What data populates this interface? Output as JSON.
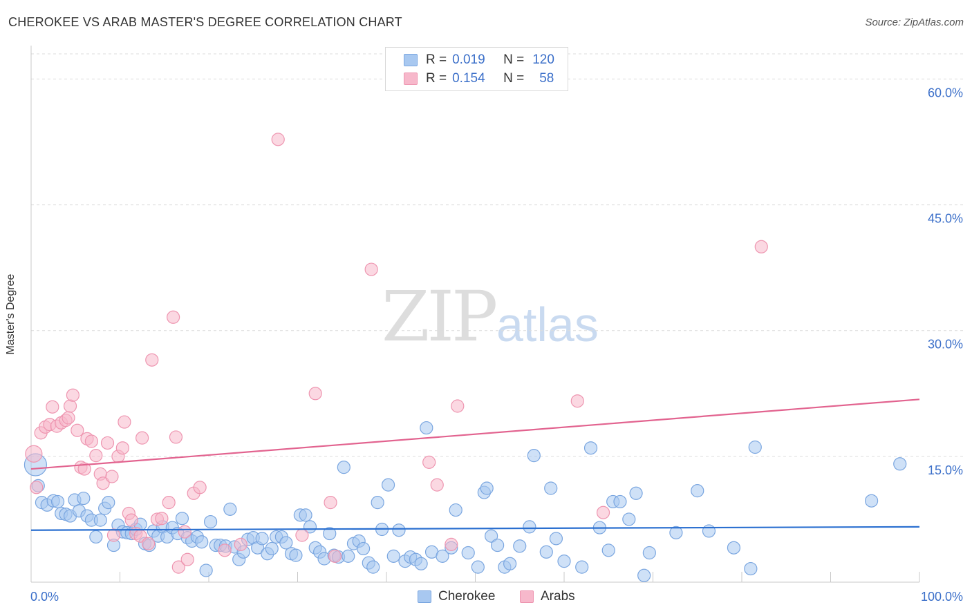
{
  "header": {
    "title": "CHEROKEE VS ARAB MASTER'S DEGREE CORRELATION CHART",
    "source": "Source: ZipAtlas.com"
  },
  "watermark": {
    "zip": "ZIP",
    "atlas": "atlas"
  },
  "legend": {
    "rows": [
      {
        "r_label": "R =",
        "r_value": "0.019",
        "n_label": "N =",
        "n_value": "120",
        "color": "#a8c8f0"
      },
      {
        "r_label": "R =",
        "r_value": "0.154",
        "n_label": "N =",
        "n_value": "58",
        "color": "#f7b8cb"
      }
    ]
  },
  "colors": {
    "cherokee_fill": "#a8c8f0",
    "cherokee_stroke": "#7aa6e0",
    "cherokee_line": "#2a6fd0",
    "arabs_fill": "#f7b8cb",
    "arabs_stroke": "#ee95b0",
    "arabs_line": "#e2638f",
    "axis_label": "#3b6fc9",
    "grid": "#dcdcdc"
  },
  "chart_data": {
    "type": "scatter",
    "title": "CHEROKEE VS ARAB MASTER'S DEGREE CORRELATION CHART",
    "xlabel": "",
    "ylabel": "Master's Degree",
    "xlim": [
      0,
      100
    ],
    "ylim": [
      0,
      63
    ],
    "x_tick_labels": [
      "0.0%",
      "100.0%"
    ],
    "y_ticks": [
      15,
      30,
      45,
      60
    ],
    "y_tick_labels": [
      "15.0%",
      "30.0%",
      "45.0%",
      "60.0%"
    ],
    "grid": "horizontal dashed",
    "legend_position": "top-center and bottom",
    "series": [
      {
        "name": "Cherokee",
        "trend": {
          "x": [
            0,
            100
          ],
          "y": [
            6.2,
            6.6
          ]
        },
        "points": [
          [
            0.5,
            14.0
          ],
          [
            0.8,
            11.5
          ],
          [
            1.2,
            9.5
          ],
          [
            1.8,
            9.2
          ],
          [
            2.5,
            9.7
          ],
          [
            3.0,
            9.6
          ],
          [
            3.4,
            8.2
          ],
          [
            3.9,
            8.1
          ],
          [
            4.4,
            7.9
          ],
          [
            4.9,
            9.8
          ],
          [
            5.4,
            8.5
          ],
          [
            5.9,
            10.0
          ],
          [
            6.3,
            7.9
          ],
          [
            6.8,
            7.4
          ],
          [
            7.3,
            5.4
          ],
          [
            7.8,
            7.4
          ],
          [
            8.3,
            8.8
          ],
          [
            8.7,
            9.5
          ],
          [
            9.3,
            4.4
          ],
          [
            9.8,
            6.8
          ],
          [
            10.3,
            6.0
          ],
          [
            10.8,
            5.9
          ],
          [
            11.3,
            5.8
          ],
          [
            11.8,
            6.3
          ],
          [
            12.3,
            6.9
          ],
          [
            12.8,
            4.6
          ],
          [
            13.3,
            4.4
          ],
          [
            13.8,
            6.1
          ],
          [
            14.3,
            5.5
          ],
          [
            14.8,
            6.6
          ],
          [
            15.3,
            5.4
          ],
          [
            15.9,
            6.5
          ],
          [
            16.5,
            5.8
          ],
          [
            17.0,
            7.6
          ],
          [
            17.6,
            5.3
          ],
          [
            18.1,
            4.9
          ],
          [
            18.7,
            5.4
          ],
          [
            19.2,
            4.8
          ],
          [
            19.7,
            1.4
          ],
          [
            20.2,
            7.2
          ],
          [
            20.8,
            4.4
          ],
          [
            21.3,
            4.4
          ],
          [
            21.9,
            4.3
          ],
          [
            22.4,
            8.7
          ],
          [
            22.9,
            4.2
          ],
          [
            23.4,
            2.7
          ],
          [
            23.9,
            3.6
          ],
          [
            24.4,
            5.1
          ],
          [
            25.0,
            5.3
          ],
          [
            25.5,
            4.1
          ],
          [
            26.0,
            5.2
          ],
          [
            26.6,
            3.4
          ],
          [
            27.1,
            4.0
          ],
          [
            27.6,
            5.4
          ],
          [
            28.2,
            5.4
          ],
          [
            28.7,
            4.7
          ],
          [
            29.3,
            3.4
          ],
          [
            29.8,
            3.2
          ],
          [
            30.3,
            8.0
          ],
          [
            30.9,
            8.0
          ],
          [
            31.4,
            6.6
          ],
          [
            32.0,
            4.1
          ],
          [
            32.5,
            3.6
          ],
          [
            33.0,
            2.8
          ],
          [
            33.6,
            5.8
          ],
          [
            34.1,
            3.2
          ],
          [
            34.6,
            3.0
          ],
          [
            35.2,
            13.7
          ],
          [
            35.7,
            3.1
          ],
          [
            36.3,
            4.6
          ],
          [
            36.9,
            4.9
          ],
          [
            37.4,
            4.0
          ],
          [
            38.0,
            2.3
          ],
          [
            38.5,
            1.8
          ],
          [
            39.0,
            9.5
          ],
          [
            39.5,
            6.3
          ],
          [
            40.2,
            11.6
          ],
          [
            40.8,
            3.1
          ],
          [
            41.4,
            6.2
          ],
          [
            42.1,
            2.5
          ],
          [
            42.7,
            3.0
          ],
          [
            43.3,
            2.7
          ],
          [
            43.9,
            2.2
          ],
          [
            44.5,
            18.4
          ],
          [
            45.1,
            3.6
          ],
          [
            46.3,
            3.1
          ],
          [
            47.3,
            4.1
          ],
          [
            47.8,
            8.6
          ],
          [
            49.2,
            3.5
          ],
          [
            50.3,
            1.8
          ],
          [
            51.0,
            10.7
          ],
          [
            51.3,
            11.2
          ],
          [
            51.8,
            5.5
          ],
          [
            52.5,
            4.4
          ],
          [
            53.3,
            1.8
          ],
          [
            53.9,
            2.2
          ],
          [
            55.0,
            4.3
          ],
          [
            56.1,
            6.6
          ],
          [
            56.6,
            15.1
          ],
          [
            58.0,
            3.6
          ],
          [
            58.5,
            11.2
          ],
          [
            59.1,
            5.2
          ],
          [
            60.0,
            2.5
          ],
          [
            62.0,
            1.8
          ],
          [
            63.0,
            16.0
          ],
          [
            64.0,
            6.5
          ],
          [
            65.0,
            3.8
          ],
          [
            65.5,
            9.6
          ],
          [
            66.3,
            9.6
          ],
          [
            67.3,
            7.5
          ],
          [
            68.1,
            10.6
          ],
          [
            69.0,
            0.8
          ],
          [
            69.6,
            3.5
          ],
          [
            72.6,
            5.9
          ],
          [
            75.0,
            10.9
          ],
          [
            76.3,
            6.1
          ],
          [
            79.1,
            4.1
          ],
          [
            81.0,
            1.6
          ],
          [
            81.5,
            16.1
          ],
          [
            94.6,
            9.7
          ],
          [
            97.8,
            14.1
          ]
        ]
      },
      {
        "name": "Arabs",
        "trend": {
          "x": [
            0,
            100
          ],
          "y": [
            13.5,
            21.8
          ]
        },
        "points": [
          [
            0.3,
            15.3
          ],
          [
            0.6,
            11.3
          ],
          [
            1.1,
            17.8
          ],
          [
            1.6,
            18.5
          ],
          [
            2.1,
            18.8
          ],
          [
            2.4,
            20.9
          ],
          [
            2.9,
            18.6
          ],
          [
            3.4,
            19.0
          ],
          [
            3.9,
            19.3
          ],
          [
            4.2,
            19.6
          ],
          [
            4.4,
            21.0
          ],
          [
            4.7,
            22.3
          ],
          [
            5.2,
            18.1
          ],
          [
            5.6,
            13.7
          ],
          [
            6.0,
            13.5
          ],
          [
            6.3,
            17.1
          ],
          [
            6.8,
            16.8
          ],
          [
            7.3,
            15.1
          ],
          [
            7.8,
            12.9
          ],
          [
            8.1,
            11.8
          ],
          [
            8.6,
            16.6
          ],
          [
            9.1,
            12.6
          ],
          [
            9.3,
            5.6
          ],
          [
            9.8,
            15.0
          ],
          [
            10.3,
            16.0
          ],
          [
            10.5,
            19.1
          ],
          [
            11.0,
            8.2
          ],
          [
            11.3,
            7.4
          ],
          [
            11.8,
            5.8
          ],
          [
            12.3,
            5.5
          ],
          [
            12.5,
            17.2
          ],
          [
            13.2,
            4.6
          ],
          [
            13.6,
            26.5
          ],
          [
            14.2,
            7.5
          ],
          [
            14.7,
            7.6
          ],
          [
            15.5,
            9.5
          ],
          [
            16.0,
            31.6
          ],
          [
            16.3,
            17.3
          ],
          [
            16.6,
            1.8
          ],
          [
            17.3,
            6.0
          ],
          [
            17.6,
            2.7
          ],
          [
            18.3,
            10.6
          ],
          [
            19.0,
            11.3
          ],
          [
            21.8,
            3.8
          ],
          [
            23.6,
            4.5
          ],
          [
            27.8,
            52.8
          ],
          [
            30.5,
            5.6
          ],
          [
            32.0,
            22.5
          ],
          [
            33.7,
            9.5
          ],
          [
            34.2,
            3.1
          ],
          [
            38.3,
            37.3
          ],
          [
            44.8,
            14.3
          ],
          [
            45.7,
            11.6
          ],
          [
            47.3,
            4.5
          ],
          [
            48.0,
            21.0
          ],
          [
            61.5,
            21.6
          ],
          [
            64.4,
            8.3
          ],
          [
            82.2,
            40.0
          ]
        ]
      }
    ]
  },
  "bottom_legend": {
    "items": [
      {
        "label": "Cherokee"
      },
      {
        "label": "Arabs"
      }
    ]
  }
}
